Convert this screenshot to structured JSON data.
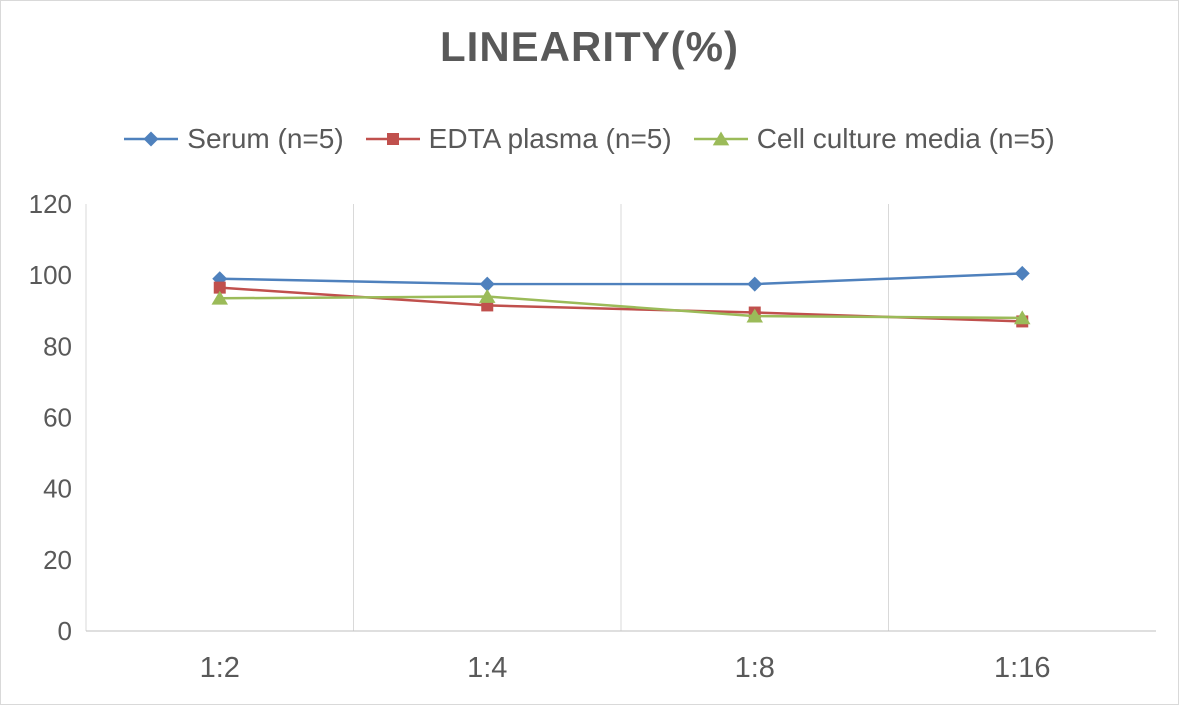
{
  "chart_data": {
    "type": "line",
    "title": "LINEARITY(%)",
    "xlabel": "",
    "ylabel": "",
    "categories": [
      "1:2",
      "1:4",
      "1:8",
      "1:16"
    ],
    "series": [
      {
        "name": "Serum (n=5)",
        "color": "#4F81BD",
        "marker": "diamond",
        "values": [
          99,
          97.5,
          97.5,
          100.5
        ]
      },
      {
        "name": "EDTA plasma (n=5)",
        "color": "#C0504D",
        "marker": "square",
        "values": [
          96.5,
          91.5,
          89.5,
          87
        ]
      },
      {
        "name": "Cell culture media (n=5)",
        "color": "#9BBB59",
        "marker": "triangle",
        "values": [
          93.5,
          94,
          88.5,
          88
        ]
      }
    ],
    "ylim": [
      0,
      120
    ],
    "yticks": [
      0,
      20,
      40,
      60,
      80,
      100,
      120
    ],
    "grid": "vertical-only",
    "legend_position": "top",
    "colors": {
      "title_text": "#595959",
      "axis_text": "#595959",
      "gridline": "#d9d9d9",
      "axis_line": "#bfbfbf"
    }
  }
}
